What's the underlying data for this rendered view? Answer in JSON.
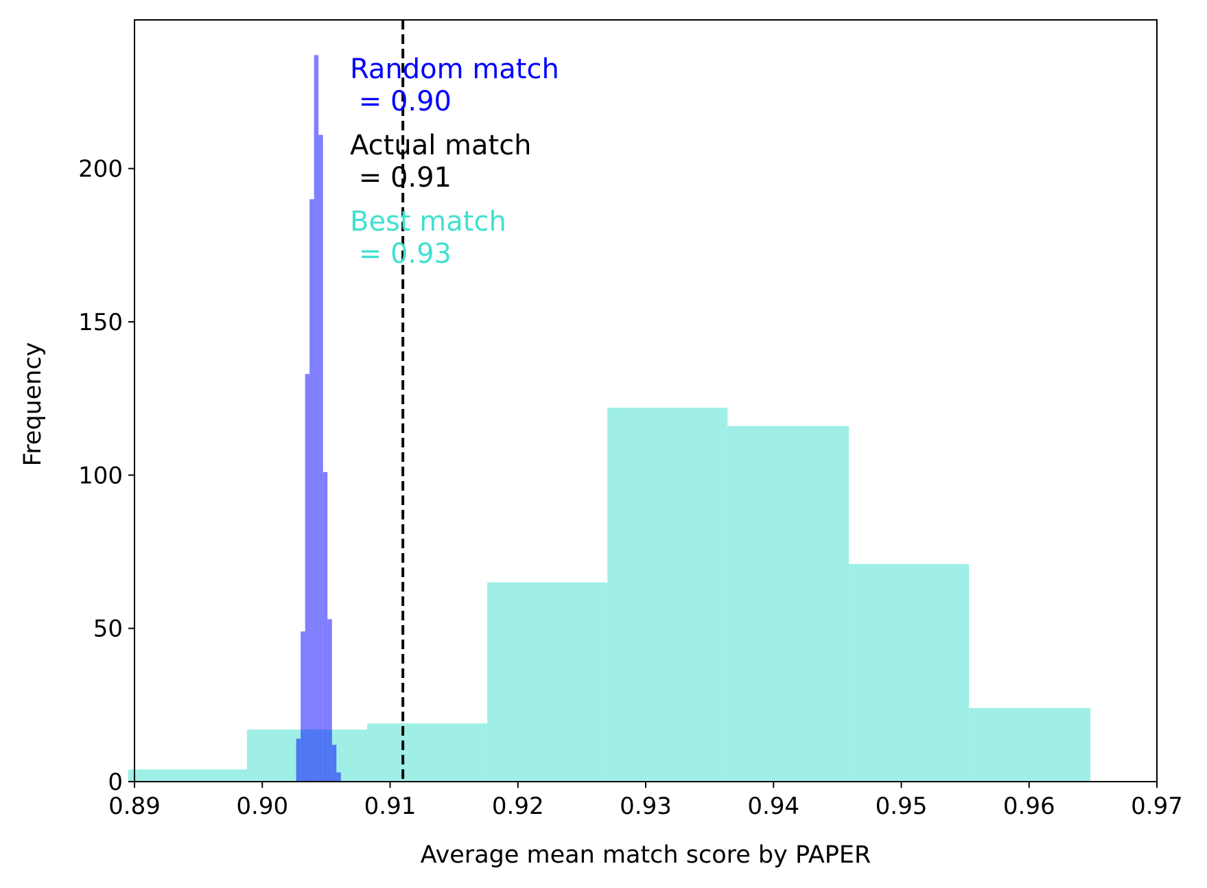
{
  "chart_data": {
    "type": "histogram",
    "xlabel": "Average mean match score by PAPER",
    "ylabel": "Frequency",
    "xlim": [
      0.89,
      0.97
    ],
    "ylim": [
      0,
      248.5
    ],
    "xticks": [
      "0.89",
      "0.90",
      "0.91",
      "0.92",
      "0.93",
      "0.94",
      "0.95",
      "0.96",
      "0.97"
    ],
    "yticks": [
      "0",
      "50",
      "100",
      "150",
      "200"
    ],
    "grid": false,
    "series": [
      {
        "color": "#40e0d0",
        "alpha": 0.5,
        "bins": [
          {
            "x0": 0.8895,
            "x1": 0.8988,
            "count": 4
          },
          {
            "x0": 0.8988,
            "x1": 0.9082,
            "count": 17
          },
          {
            "x0": 0.9082,
            "x1": 0.9176,
            "count": 19
          },
          {
            "x0": 0.9176,
            "x1": 0.927,
            "count": 65
          },
          {
            "x0": 0.927,
            "x1": 0.9364,
            "count": 122
          },
          {
            "x0": 0.9364,
            "x1": 0.9459,
            "count": 116
          },
          {
            "x0": 0.9459,
            "x1": 0.9553,
            "count": 71
          },
          {
            "x0": 0.9553,
            "x1": 0.9648,
            "count": 24
          }
        ]
      },
      {
        "color": "#0000ff",
        "alpha": 0.5,
        "bins": [
          {
            "x0": 0.90265,
            "x1": 0.903,
            "count": 14
          },
          {
            "x0": 0.903,
            "x1": 0.90335,
            "count": 49
          },
          {
            "x0": 0.90335,
            "x1": 0.9037,
            "count": 133
          },
          {
            "x0": 0.9037,
            "x1": 0.90405,
            "count": 190
          },
          {
            "x0": 0.90405,
            "x1": 0.9044,
            "count": 237
          },
          {
            "x0": 0.9044,
            "x1": 0.90475,
            "count": 211
          },
          {
            "x0": 0.90475,
            "x1": 0.9051,
            "count": 101
          },
          {
            "x0": 0.9051,
            "x1": 0.90545,
            "count": 53
          },
          {
            "x0": 0.90545,
            "x1": 0.9058,
            "count": 12
          },
          {
            "x0": 0.9058,
            "x1": 0.90615,
            "count": 3
          }
        ]
      }
    ],
    "vline": {
      "x": 0.911,
      "color": "#000000",
      "style": "dashed"
    },
    "annotations": [
      {
        "text_line1": "Random match",
        "text_line2": " = 0.90",
        "color": "#0000ff"
      },
      {
        "text_line1": "Actual match",
        "text_line2": " = 0.91",
        "color": "#000000"
      },
      {
        "text_line1": "Best match",
        "text_line2": " = 0.93",
        "color": "#40e0d0"
      }
    ]
  }
}
